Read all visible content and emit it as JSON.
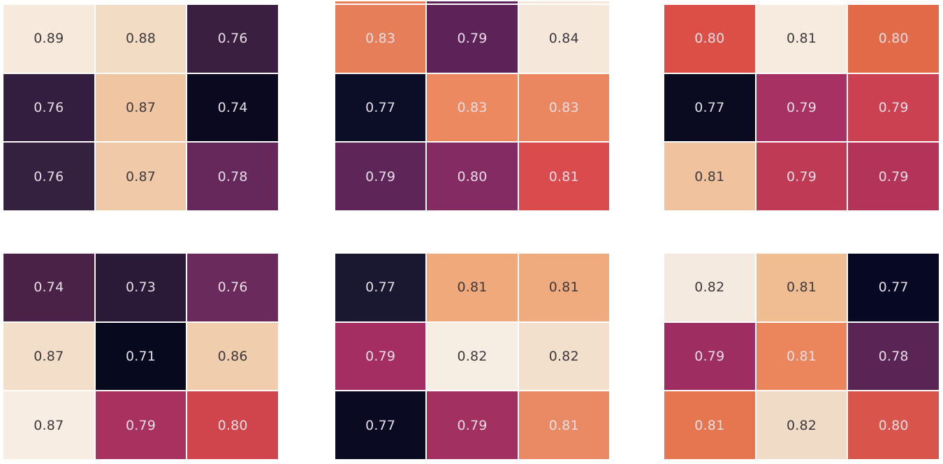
{
  "page": {
    "background": "#ffffff"
  },
  "colors": {
    "dark_text": "#3e393d",
    "light_text": "#e6dee5",
    "grid_gap": "#ffffff"
  },
  "top_partial_strip": {
    "segment_colors": [
      "#e57e59",
      "#5d2358",
      "#f5e7da"
    ]
  },
  "chart_data": [
    {
      "type": "heatmap",
      "grid_position": "row1-col1",
      "rows": 3,
      "cols": 3,
      "annotated": true,
      "values": [
        [
          "0.89",
          "0.88",
          "0.76"
        ],
        [
          "0.76",
          "0.87",
          "0.74"
        ],
        [
          "0.76",
          "0.87",
          "0.78"
        ]
      ],
      "cell_colors": [
        [
          "#f7eadc",
          "#f2dcc4",
          "#3a1f41"
        ],
        [
          "#331e3f",
          "#efc5a2",
          "#0a0920"
        ],
        [
          "#34203f",
          "#f0caa8",
          "#66285a"
        ]
      ],
      "text_tones": [
        [
          "dark",
          "dark",
          "light"
        ],
        [
          "light",
          "dark",
          "light"
        ],
        [
          "light",
          "dark",
          "light"
        ]
      ]
    },
    {
      "type": "heatmap",
      "grid_position": "row1-col2",
      "rows": 3,
      "cols": 3,
      "annotated": true,
      "values": [
        [
          "0.83",
          "0.79",
          "0.84"
        ],
        [
          "0.77",
          "0.83",
          "0.83"
        ],
        [
          "0.79",
          "0.80",
          "0.81"
        ]
      ],
      "cell_colors": [
        [
          "#e57e59",
          "#5d2358",
          "#f5e7da"
        ],
        [
          "#0c0d26",
          "#ec8960",
          "#ea8660"
        ],
        [
          "#5e2558",
          "#832b62",
          "#d94b4c"
        ]
      ],
      "text_tones": [
        [
          "light",
          "light",
          "dark"
        ],
        [
          "light",
          "light",
          "light"
        ],
        [
          "light",
          "light",
          "light"
        ]
      ]
    },
    {
      "type": "heatmap",
      "grid_position": "row1-col3",
      "rows": 3,
      "cols": 3,
      "annotated": true,
      "values": [
        [
          "0.80",
          "0.81",
          "0.80"
        ],
        [
          "0.77",
          "0.79",
          "0.79"
        ],
        [
          "0.81",
          "0.79",
          "0.79"
        ]
      ],
      "cell_colors": [
        [
          "#db4f47",
          "#f6ebde",
          "#e26a49"
        ],
        [
          "#0a0a20",
          "#a83163",
          "#cc4152"
        ],
        [
          "#f0c39e",
          "#be3a55",
          "#b43459"
        ]
      ],
      "text_tones": [
        [
          "light",
          "dark",
          "light"
        ],
        [
          "light",
          "light",
          "light"
        ],
        [
          "dark",
          "light",
          "light"
        ]
      ]
    },
    {
      "type": "heatmap",
      "grid_position": "row2-col1",
      "rows": 3,
      "cols": 3,
      "annotated": true,
      "values": [
        [
          "0.74",
          "0.73",
          "0.76"
        ],
        [
          "0.87",
          "0.71",
          "0.86"
        ],
        [
          "0.87",
          "0.79",
          "0.80"
        ]
      ],
      "cell_colors": [
        [
          "#4a2147",
          "#2a1a38",
          "#6b2a5c"
        ],
        [
          "#f2dec9",
          "#070a1e",
          "#efcdad"
        ],
        [
          "#f8ede2",
          "#a93160",
          "#d0454c"
        ]
      ],
      "text_tones": [
        [
          "light",
          "light",
          "light"
        ],
        [
          "dark",
          "light",
          "dark"
        ],
        [
          "dark",
          "light",
          "light"
        ]
      ]
    },
    {
      "type": "heatmap",
      "grid_position": "row2-col2",
      "rows": 3,
      "cols": 3,
      "annotated": true,
      "values": [
        [
          "0.77",
          "0.81",
          "0.81"
        ],
        [
          "0.79",
          "0.82",
          "0.82"
        ],
        [
          "0.77",
          "0.79",
          "0.81"
        ]
      ],
      "cell_colors": [
        [
          "#1a1730",
          "#efa97b",
          "#efaa7e"
        ],
        [
          "#a42e62",
          "#f7eee3",
          "#f2dfcc"
        ],
        [
          "#0a0a22",
          "#a23061",
          "#e98a64"
        ]
      ],
      "text_tones": [
        [
          "light",
          "dark",
          "dark"
        ],
        [
          "light",
          "dark",
          "dark"
        ],
        [
          "light",
          "light",
          "light"
        ]
      ]
    },
    {
      "type": "heatmap",
      "grid_position": "row2-col3",
      "rows": 3,
      "cols": 3,
      "annotated": true,
      "values": [
        [
          "0.82",
          "0.81",
          "0.77"
        ],
        [
          "0.79",
          "0.81",
          "0.78"
        ],
        [
          "0.81",
          "0.82",
          "0.80"
        ]
      ],
      "cell_colors": [
        [
          "#f5eadf",
          "#f0bd93",
          "#070823"
        ],
        [
          "#9e2e62",
          "#ea855c",
          "#5a2455"
        ],
        [
          "#e5764f",
          "#f0dcc6",
          "#d9544a"
        ]
      ],
      "text_tones": [
        [
          "dark",
          "dark",
          "light"
        ],
        [
          "light",
          "light",
          "light"
        ],
        [
          "light",
          "dark",
          "light"
        ]
      ]
    }
  ]
}
